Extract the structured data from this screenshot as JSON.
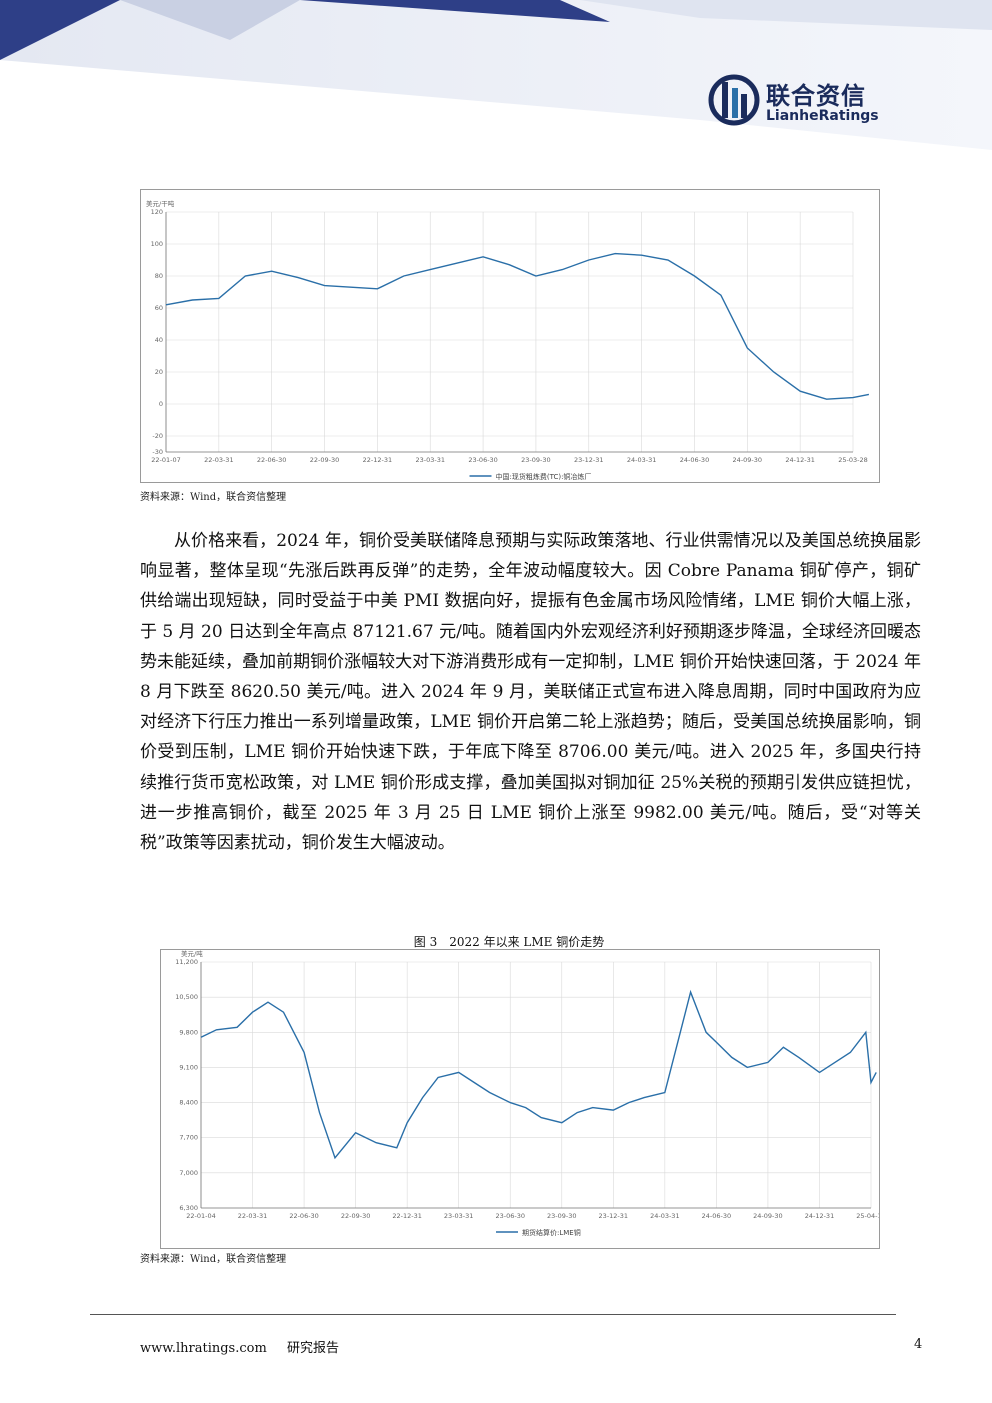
{
  "header": {
    "logo_cn": "联合资信",
    "logo_en": "LianheRatings",
    "colors": {
      "brand": "#1a2b5c",
      "banner": "#2e3f87",
      "line": "#2a6fa8"
    }
  },
  "source_label": "资料来源：Wind，联合资信整理",
  "paragraph": "从价格来看，2024 年，铜价受美联储降息预期与实际政策落地、行业供需情况以及美国总统换届影响显著，整体呈现“先涨后跌再反弹”的走势，全年波动幅度较大。因 Cobre Panama 铜矿停产，铜矿供给端出现短缺，同时受益于中美 PMI 数据向好，提振有色金属市场风险情绪，LME 铜价大幅上涨，于 5 月 20 日达到全年高点 87121.67 元/吨。随着国内外宏观经济利好预期逐步降温，全球经济回暖态势未能延续，叠加前期铜价涨幅较大对下游消费形成有一定抑制，LME 铜价开始快速回落，于 2024 年 8 月下跌至 8620.50 美元/吨。进入 2024 年 9 月，美联储正式宣布进入降息周期，同时中国政府为应对经济下行压力推出一系列增量政策，LME 铜价开启第二轮上涨趋势；随后，受美国总统换届影响，铜价受到压制，LME 铜价开始快速下跌，于年底下降至 8706.00 美元/吨。进入 2025 年，多国央行持续推行货币宽松政策，对 LME 铜价形成支撑，叠加美国拟对铜加征 25%关税的预期引发供应链担忧，进一步推高铜价，截至 2025 年 3 月 25 日 LME 铜价上涨至 9982.00 美元/吨。随后，受“对等关税”政策等因素扰动，铜价发生大幅波动。",
  "figure3_title": "图 3　2022 年以来 LME 铜价走势",
  "footer": {
    "url": "www.lhratings.com",
    "label": "研究报告",
    "page": "4"
  },
  "chart_data": [
    {
      "type": "line",
      "unit_label": "美元/干吨",
      "legend": "中国:现货粗炼费(TC):铜冶炼厂",
      "x_ticks": [
        "22-01-07",
        "22-03-31",
        "22-06-30",
        "22-09-30",
        "22-12-31",
        "23-03-31",
        "23-06-30",
        "23-09-30",
        "23-12-31",
        "24-03-31",
        "24-06-30",
        "24-09-30",
        "24-12-31",
        "25-03-28"
      ],
      "ylim": [
        -30,
        120
      ],
      "y_ticks": [
        "120",
        "100",
        "80",
        "60",
        "40",
        "20",
        "0",
        "-20",
        "-30"
      ],
      "grid": true,
      "series": [
        {
          "name": "中国:现货粗炼费(TC):铜冶炼厂",
          "x": [
            0,
            0.5,
            1,
            1.5,
            2,
            2.5,
            3,
            3.5,
            4,
            4.5,
            5,
            5.5,
            6,
            6.5,
            7,
            7.5,
            8,
            8.5,
            9,
            9.5,
            10,
            10.5,
            11,
            11.5,
            12,
            12.5,
            13,
            13.3
          ],
          "values": [
            62,
            65,
            66,
            80,
            83,
            79,
            74,
            73,
            72,
            80,
            84,
            88,
            92,
            87,
            80,
            84,
            90,
            94,
            93,
            90,
            80,
            68,
            35,
            20,
            8,
            3,
            4,
            6
          ]
        }
      ]
    },
    {
      "type": "line",
      "unit_label": "美元/吨",
      "legend": "期货结算价:LME铜",
      "x_ticks": [
        "22-01-04",
        "22-03-31",
        "22-06-30",
        "22-09-30",
        "22-12-31",
        "23-03-31",
        "23-06-30",
        "23-09-30",
        "23-12-31",
        "24-03-31",
        "24-06-30",
        "24-09-30",
        "24-12-31",
        "25-04-17"
      ],
      "ylim": [
        6300,
        11200
      ],
      "y_ticks": [
        "11,200",
        "10,500",
        "9,800",
        "9,100",
        "8,400",
        "7,700",
        "7,000",
        "6,300"
      ],
      "grid": true,
      "series": [
        {
          "name": "期货结算价:LME铜",
          "x": [
            0,
            0.3,
            0.7,
            1,
            1.3,
            1.6,
            2,
            2.3,
            2.6,
            3,
            3.4,
            3.8,
            4,
            4.3,
            4.6,
            5,
            5.3,
            5.6,
            6,
            6.3,
            6.6,
            7,
            7.3,
            7.6,
            8,
            8.3,
            8.6,
            9,
            9.3,
            9.5,
            9.8,
            10,
            10.3,
            10.6,
            11,
            11.3,
            11.6,
            12,
            12.3,
            12.6,
            12.9,
            13,
            13.1
          ],
          "values": [
            9700,
            9850,
            9900,
            10200,
            10400,
            10200,
            9400,
            8200,
            7300,
            7800,
            7600,
            7500,
            8000,
            8500,
            8900,
            9000,
            8800,
            8600,
            8400,
            8300,
            8100,
            8000,
            8200,
            8300,
            8250,
            8400,
            8500,
            8600,
            9800,
            10600,
            9800,
            9600,
            9300,
            9100,
            9200,
            9500,
            9300,
            9000,
            9200,
            9400,
            9800,
            8800,
            9000
          ]
        }
      ]
    }
  ]
}
